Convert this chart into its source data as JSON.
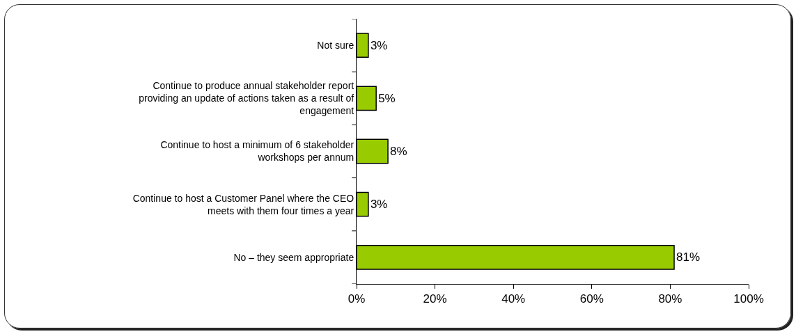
{
  "chart_data": {
    "type": "bar",
    "orientation": "horizontal",
    "categories": [
      "Not sure",
      "Continue to produce annual stakeholder report providing an update of actions taken as a result of engagement",
      "Continue to host a minimum of 6 stakeholder workshops per annum",
      "Continue to host a Customer Panel where the CEO meets with them four times a year",
      "No – they seem appropriate"
    ],
    "values": [
      3,
      5,
      8,
      3,
      81
    ],
    "value_labels": [
      "3%",
      "5%",
      "8%",
      "3%",
      "81%"
    ],
    "color": "#99cc00",
    "xlim": [
      0,
      100
    ],
    "xticks": [
      {
        "value": 0,
        "label": "0%"
      },
      {
        "value": 20,
        "label": "20%"
      },
      {
        "value": 40,
        "label": "40%"
      },
      {
        "value": 60,
        "label": "60%"
      },
      {
        "value": 80,
        "label": "80%"
      },
      {
        "value": 100,
        "label": "100%"
      }
    ],
    "grid": false
  }
}
